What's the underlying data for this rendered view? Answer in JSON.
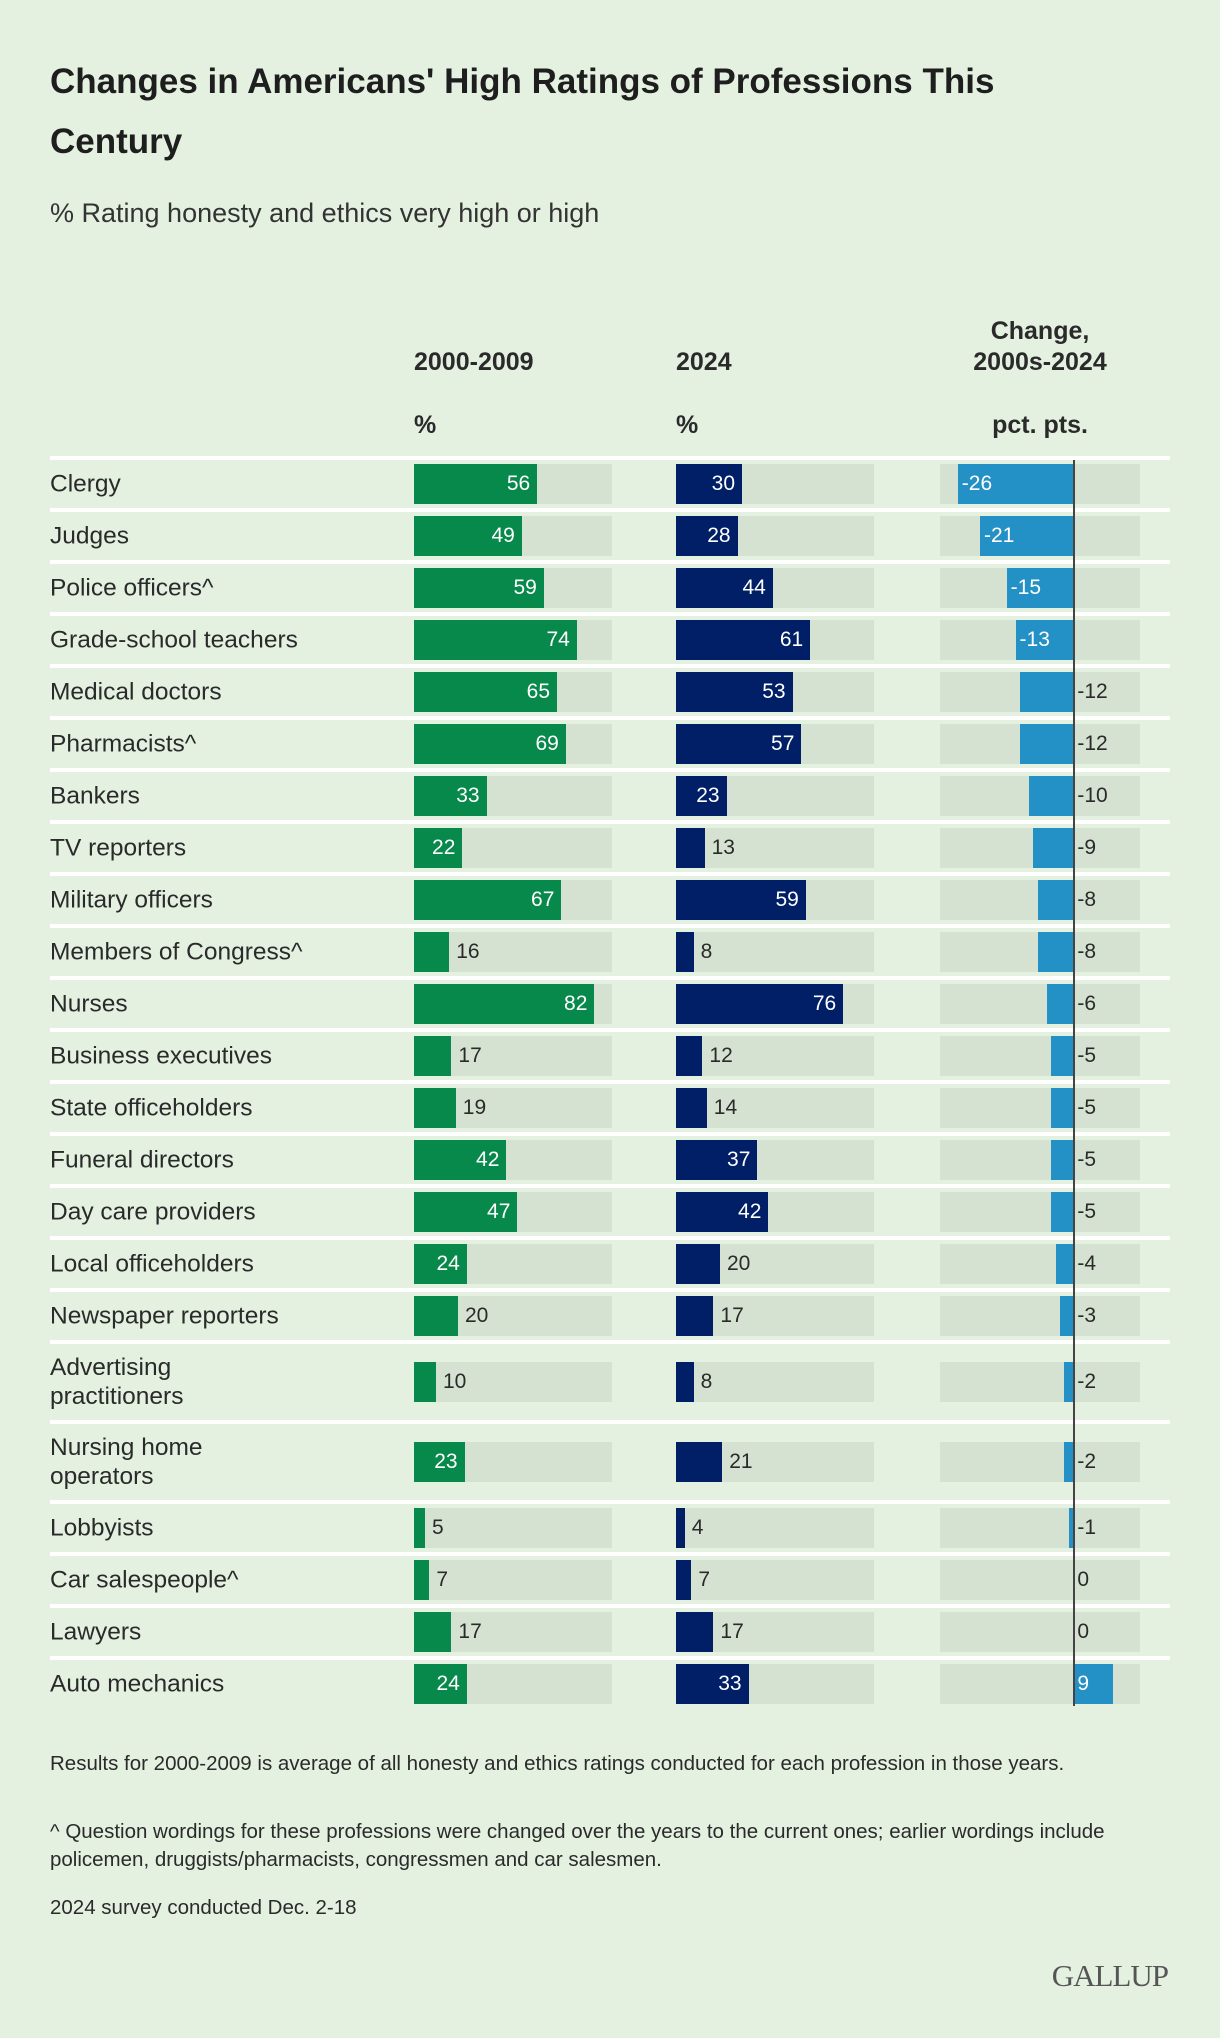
{
  "title": "Changes in Americans' High Ratings of Professions This\nCentury",
  "subtitle": "% Rating honesty and ethics very high or high",
  "headers": {
    "col1": "2000-2009",
    "col1_unit": "%",
    "col2": "2024",
    "col2_unit": "%",
    "col3_line1": "Change,",
    "col3_line2": "2000s-2024",
    "col3_unit": "pct. pts."
  },
  "colors": {
    "col1": "#07894c",
    "col2": "#001f66",
    "col3": "#2390c6",
    "track": "#d5e2d2"
  },
  "chart_data": {
    "type": "bar",
    "title": "Changes in Americans' High Ratings of Professions This Century",
    "subtitle": "% Rating honesty and ethics very high or high",
    "categories": [
      "Clergy",
      "Judges",
      "Police officers^",
      "Grade-school teachers",
      "Medical doctors",
      "Pharmacists^",
      "Bankers",
      "TV reporters",
      "Military officers",
      "Members of Congress^",
      "Nurses",
      "Business executives",
      "State officeholders",
      "Funeral directors",
      "Day care providers",
      "Local officeholders",
      "Newspaper reporters",
      "Advertising\npractitioners",
      "Nursing home\noperators",
      "Lobbyists",
      "Car salespeople^",
      "Lawyers",
      "Auto mechanics"
    ],
    "series": [
      {
        "name": "2000-2009",
        "unit": "%",
        "values": [
          56,
          49,
          59,
          74,
          65,
          69,
          33,
          22,
          67,
          16,
          82,
          17,
          19,
          42,
          47,
          24,
          20,
          10,
          23,
          5,
          7,
          17,
          24
        ]
      },
      {
        "name": "2024",
        "unit": "%",
        "values": [
          30,
          28,
          44,
          61,
          53,
          57,
          23,
          13,
          59,
          8,
          76,
          12,
          14,
          37,
          42,
          20,
          17,
          8,
          21,
          4,
          7,
          17,
          33
        ]
      },
      {
        "name": "Change, 2000s-2024",
        "unit": "pct. pts.",
        "values": [
          -26,
          -21,
          -15,
          -13,
          -12,
          -12,
          -10,
          -9,
          -8,
          -8,
          -6,
          -5,
          -5,
          -5,
          -5,
          -4,
          -3,
          -2,
          -2,
          -1,
          0,
          0,
          9
        ]
      }
    ],
    "ranges": {
      "pct": [
        0,
        90
      ],
      "change": [
        -30,
        15
      ]
    }
  },
  "footnotes": [
    "Results for 2000-2009 is average of all honesty and ethics ratings conducted for each profession in those years.",
    "^ Question wordings for these professions were changed over the years to the current ones; earlier wordings include policemen, druggists/pharmacists, congressmen and car salesmen.",
    "2024 survey conducted Dec. 2-18"
  ],
  "logo": "GALLUP"
}
